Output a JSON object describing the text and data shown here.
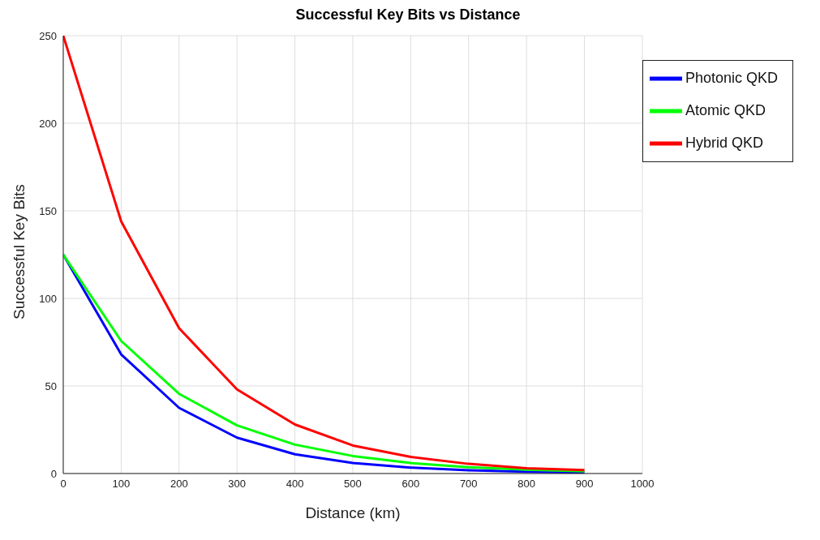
{
  "chart_data": {
    "type": "line",
    "title": "Successful Key Bits vs Distance",
    "xlabel": "Distance (km)",
    "ylabel": "Successful Key Bits",
    "x": [
      0,
      100,
      200,
      300,
      400,
      500,
      600,
      700,
      800,
      900
    ],
    "series": [
      {
        "name": "Photonic QKD",
        "color": "#0000ff",
        "values": [
          125,
          68,
          37.5,
          20.5,
          11,
          6,
          3.4,
          1.9,
          1,
          0.6
        ]
      },
      {
        "name": "Atomic QKD",
        "color": "#00ff00",
        "values": [
          125,
          75.7,
          45.5,
          27.5,
          16.5,
          10,
          6,
          3.6,
          2.2,
          1.3
        ]
      },
      {
        "name": "Hybrid QKD",
        "color": "#ff0000",
        "values": [
          250,
          144,
          83,
          48,
          28,
          16,
          9.5,
          5.5,
          3,
          2
        ]
      }
    ],
    "xlim": [
      0,
      1000
    ],
    "xticks": [
      0,
      100,
      200,
      300,
      400,
      500,
      600,
      700,
      800,
      900,
      1000
    ],
    "ylim": [
      0,
      250
    ],
    "yticks": [
      0,
      50,
      100,
      150,
      200,
      250
    ],
    "grid": true,
    "legend": "top right",
    "marker": "none",
    "line_style": "solid"
  }
}
